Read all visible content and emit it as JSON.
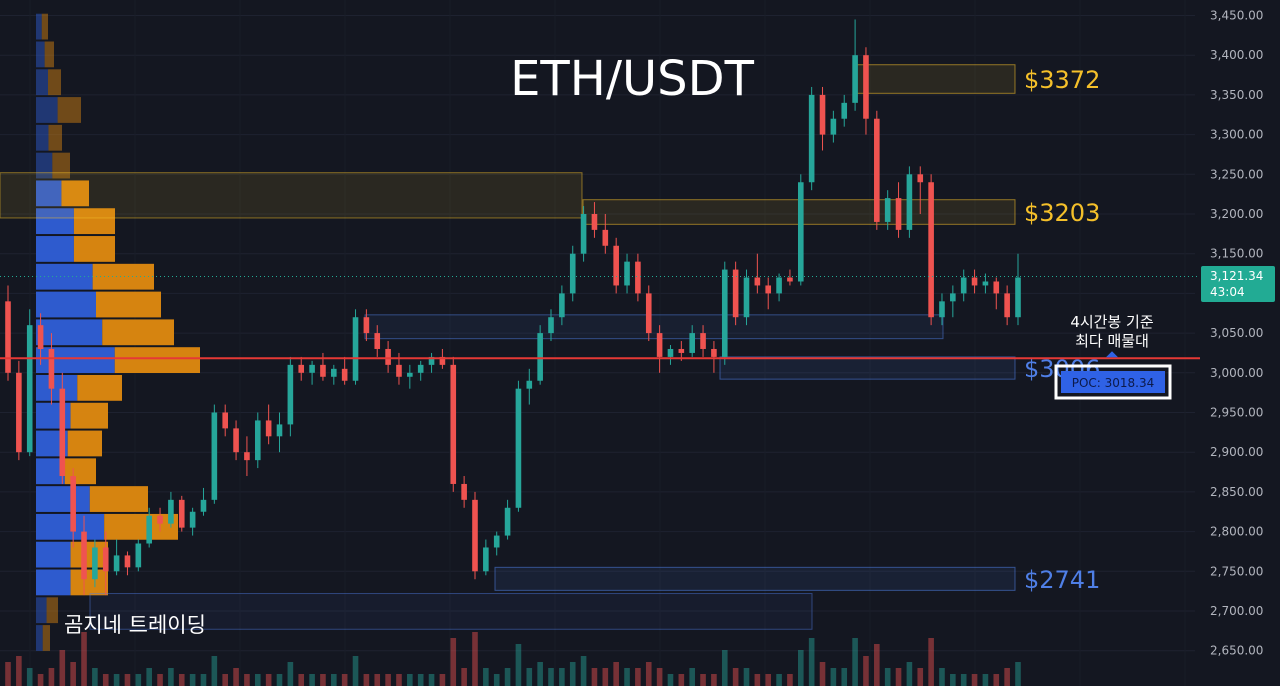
{
  "chart_data": {
    "type": "candlestick",
    "title": "ETH/USDT",
    "y_axis": {
      "ticks": [
        "3,450.00",
        "3,400.00",
        "3,350.00",
        "3,300.00",
        "3,250.00",
        "3,200.00",
        "3,150.00",
        "3,100.00",
        "3,050.00",
        "3,000.00",
        "2,950.00",
        "2,900.00",
        "2,850.00",
        "2,800.00",
        "2,750.00",
        "2,700.00",
        "2,650.00"
      ],
      "tick_values": [
        3450,
        3400,
        3350,
        3300,
        3250,
        3200,
        3150,
        3100,
        3050,
        3000,
        2950,
        2900,
        2850,
        2800,
        2750,
        2700,
        2650
      ],
      "range": [
        2605,
        3470
      ]
    },
    "current_price": {
      "label": "3,121.34",
      "timer": "43:04",
      "value": 3121.34
    },
    "levels": [
      {
        "name": "resistance-3372",
        "label": "$3372",
        "value": 3372,
        "top": 3388,
        "bottom": 3352,
        "color": "#f5c02a"
      },
      {
        "name": "resistance-3203",
        "label": "$3203",
        "value": 3203,
        "top": 3218,
        "bottom": 3187,
        "color": "#f5c02a"
      },
      {
        "name": "support-3006",
        "label": "$3006",
        "value": 3006,
        "top": 3020,
        "bottom": 2992,
        "color": "#4f7fe6"
      },
      {
        "name": "support-2741",
        "label": "$2741",
        "value": 2741,
        "top": 2755,
        "bottom": 2726,
        "color": "#4f7fe6"
      }
    ],
    "poc": {
      "label": "POC: 3018.34",
      "value": 3018.34,
      "annotation_line1": "4시간봉 기준",
      "annotation_line2": "최다 매물대"
    },
    "watermark": "곰지네 트레이딩",
    "colors": {
      "up": "#26a69a",
      "down": "#ef5350",
      "buy_volume": "#2f5fd8",
      "sell_volume": "#e08a10",
      "poc_line": "#e53935",
      "background": "#141721"
    },
    "volume_profile": [
      {
        "price": 3436,
        "buy": 12,
        "sell": 3
      },
      {
        "price": 3401,
        "buy": 18,
        "sell": 5
      },
      {
        "price": 3366,
        "buy": 25,
        "sell": 6
      },
      {
        "price": 3331,
        "buy": 45,
        "sell": 10
      },
      {
        "price": 3296,
        "buy": 26,
        "sell": 6
      },
      {
        "price": 3261,
        "buy": 34,
        "sell": 8
      },
      {
        "price": 3226,
        "buy": 53,
        "sell": 16
      },
      {
        "price": 3191,
        "buy": 79,
        "sell": 24
      },
      {
        "price": 3156,
        "buy": 79,
        "sell": 24
      },
      {
        "price": 3121,
        "buy": 118,
        "sell": 34
      },
      {
        "price": 3086,
        "buy": 125,
        "sell": 36
      },
      {
        "price": 3051,
        "buy": 138,
        "sell": 40
      },
      {
        "price": 3016,
        "buy": 164,
        "sell": 52
      },
      {
        "price": 2981,
        "buy": 86,
        "sell": 28
      },
      {
        "price": 2946,
        "buy": 72,
        "sell": 22
      },
      {
        "price": 2911,
        "buy": 66,
        "sell": 22
      },
      {
        "price": 2876,
        "buy": 60,
        "sell": 20
      },
      {
        "price": 2841,
        "buy": 112,
        "sell": 34
      },
      {
        "price": 2806,
        "buy": 142,
        "sell": 44
      },
      {
        "price": 2771,
        "buy": 72,
        "sell": 22
      },
      {
        "price": 2736,
        "buy": 72,
        "sell": 22
      },
      {
        "price": 2701,
        "buy": 22,
        "sell": 6
      },
      {
        "price": 2666,
        "buy": 14,
        "sell": 4
      }
    ],
    "candles": [
      [
        3090,
        3110,
        2990,
        3000
      ],
      [
        3000,
        3015,
        2890,
        2900
      ],
      [
        2900,
        3080,
        2895,
        3060
      ],
      [
        3060,
        3075,
        3010,
        3030
      ],
      [
        3030,
        3050,
        2960,
        2980
      ],
      [
        2980,
        3000,
        2860,
        2870
      ],
      [
        2870,
        2880,
        2780,
        2800
      ],
      [
        2800,
        2820,
        2720,
        2740
      ],
      [
        2740,
        2790,
        2730,
        2780
      ],
      [
        2780,
        2800,
        2720,
        2750
      ],
      [
        2750,
        2790,
        2745,
        2770
      ],
      [
        2770,
        2775,
        2745,
        2755
      ],
      [
        2755,
        2790,
        2750,
        2785
      ],
      [
        2785,
        2830,
        2780,
        2820
      ],
      [
        2820,
        2830,
        2800,
        2810
      ],
      [
        2810,
        2850,
        2805,
        2840
      ],
      [
        2840,
        2845,
        2800,
        2805
      ],
      [
        2805,
        2830,
        2795,
        2825
      ],
      [
        2825,
        2855,
        2820,
        2840
      ],
      [
        2840,
        2960,
        2835,
        2950
      ],
      [
        2950,
        2960,
        2920,
        2930
      ],
      [
        2930,
        2940,
        2890,
        2900
      ],
      [
        2900,
        2920,
        2870,
        2890
      ],
      [
        2890,
        2950,
        2880,
        2940
      ],
      [
        2940,
        2960,
        2910,
        2920
      ],
      [
        2920,
        2950,
        2900,
        2935
      ],
      [
        2935,
        3020,
        2920,
        3010
      ],
      [
        3010,
        3020,
        2990,
        3000
      ],
      [
        3000,
        3015,
        2985,
        3010
      ],
      [
        3010,
        3025,
        2990,
        2995
      ],
      [
        2995,
        3010,
        2985,
        3005
      ],
      [
        3005,
        3020,
        2985,
        2990
      ],
      [
        2990,
        3080,
        2985,
        3070
      ],
      [
        3070,
        3080,
        3040,
        3050
      ],
      [
        3050,
        3060,
        3020,
        3030
      ],
      [
        3030,
        3040,
        3000,
        3010
      ],
      [
        3010,
        3025,
        2985,
        2995
      ],
      [
        2995,
        3010,
        2980,
        3000
      ],
      [
        3000,
        3015,
        2990,
        3010
      ],
      [
        3010,
        3025,
        3000,
        3020
      ],
      [
        3020,
        3030,
        3005,
        3010
      ],
      [
        3010,
        3020,
        2850,
        2860
      ],
      [
        2860,
        2870,
        2830,
        2840
      ],
      [
        2840,
        2850,
        2740,
        2750
      ],
      [
        2750,
        2790,
        2745,
        2780
      ],
      [
        2780,
        2800,
        2770,
        2795
      ],
      [
        2795,
        2840,
        2790,
        2830
      ],
      [
        2830,
        2990,
        2825,
        2980
      ],
      [
        2980,
        3005,
        2960,
        2990
      ],
      [
        2990,
        3060,
        2985,
        3050
      ],
      [
        3050,
        3080,
        3040,
        3070
      ],
      [
        3070,
        3110,
        3060,
        3100
      ],
      [
        3100,
        3160,
        3090,
        3150
      ],
      [
        3150,
        3210,
        3140,
        3200
      ],
      [
        3200,
        3215,
        3170,
        3180
      ],
      [
        3180,
        3200,
        3150,
        3160
      ],
      [
        3160,
        3170,
        3100,
        3110
      ],
      [
        3110,
        3150,
        3100,
        3140
      ],
      [
        3140,
        3150,
        3090,
        3100
      ],
      [
        3100,
        3110,
        3040,
        3050
      ],
      [
        3050,
        3060,
        3000,
        3020
      ],
      [
        3020,
        3035,
        3010,
        3030
      ],
      [
        3030,
        3040,
        3015,
        3025
      ],
      [
        3025,
        3060,
        3020,
        3050
      ],
      [
        3050,
        3060,
        3020,
        3030
      ],
      [
        3030,
        3040,
        3000,
        3020
      ],
      [
        3020,
        3140,
        3010,
        3130
      ],
      [
        3130,
        3140,
        3060,
        3070
      ],
      [
        3070,
        3130,
        3060,
        3120
      ],
      [
        3120,
        3150,
        3100,
        3110
      ],
      [
        3110,
        3120,
        3080,
        3100
      ],
      [
        3100,
        3125,
        3090,
        3120
      ],
      [
        3120,
        3130,
        3110,
        3115
      ],
      [
        3115,
        3250,
        3110,
        3240
      ],
      [
        3240,
        3360,
        3230,
        3350
      ],
      [
        3350,
        3360,
        3280,
        3300
      ],
      [
        3300,
        3330,
        3290,
        3320
      ],
      [
        3320,
        3350,
        3310,
        3340
      ],
      [
        3340,
        3445,
        3330,
        3400
      ],
      [
        3400,
        3410,
        3300,
        3320
      ],
      [
        3320,
        3330,
        3180,
        3190
      ],
      [
        3190,
        3230,
        3180,
        3220
      ],
      [
        3220,
        3240,
        3170,
        3180
      ],
      [
        3180,
        3260,
        3170,
        3250
      ],
      [
        3250,
        3260,
        3200,
        3240
      ],
      [
        3240,
        3250,
        3060,
        3070
      ],
      [
        3070,
        3100,
        3060,
        3090
      ],
      [
        3090,
        3110,
        3070,
        3100
      ],
      [
        3100,
        3130,
        3090,
        3120
      ],
      [
        3120,
        3130,
        3100,
        3110
      ],
      [
        3110,
        3125,
        3100,
        3115
      ],
      [
        3115,
        3120,
        3080,
        3100
      ],
      [
        3100,
        3110,
        3060,
        3070
      ],
      [
        3070,
        3150,
        3060,
        3120
      ]
    ],
    "volume": [
      0.4,
      0.5,
      0.3,
      0.2,
      0.3,
      0.6,
      0.4,
      0.9,
      0.3,
      0.2,
      0.2,
      0.2,
      0.2,
      0.3,
      0.2,
      0.3,
      0.2,
      0.2,
      0.2,
      0.5,
      0.2,
      0.3,
      0.2,
      0.2,
      0.2,
      0.2,
      0.4,
      0.2,
      0.2,
      0.2,
      0.2,
      0.2,
      0.5,
      0.2,
      0.2,
      0.2,
      0.2,
      0.2,
      0.2,
      0.2,
      0.2,
      0.8,
      0.3,
      0.9,
      0.3,
      0.2,
      0.3,
      0.7,
      0.3,
      0.4,
      0.3,
      0.3,
      0.4,
      0.5,
      0.3,
      0.3,
      0.4,
      0.3,
      0.3,
      0.4,
      0.3,
      0.2,
      0.2,
      0.3,
      0.2,
      0.2,
      0.6,
      0.3,
      0.3,
      0.2,
      0.2,
      0.2,
      0.2,
      0.6,
      0.8,
      0.4,
      0.3,
      0.3,
      0.8,
      0.5,
      0.7,
      0.3,
      0.3,
      0.4,
      0.3,
      0.8,
      0.3,
      0.2,
      0.2,
      0.2,
      0.2,
      0.2,
      0.3,
      0.4
    ]
  }
}
